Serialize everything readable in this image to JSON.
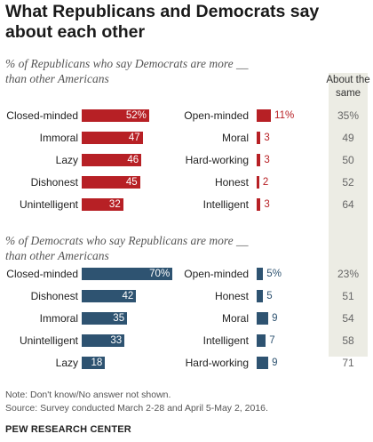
{
  "title": "What Republicans and Democrats say about each other",
  "same_header": "About the same",
  "notes": {
    "note": "Note: Don't know/No answer not shown.",
    "source": "Source: Survey conducted March 2-28 and April 5-May 2, 2016.",
    "brand": "PEW RESEARCH CENTER"
  },
  "colors": {
    "republican": "#b72025",
    "democrat": "#2e5371",
    "same_bg": "#ecece4"
  },
  "chart_data": [
    {
      "type": "bar",
      "subtitle": "% of Republicans who say Democrats are more __ than other Americans",
      "rows": [
        {
          "neg": "Closed-minded",
          "neg_value": 52,
          "neg_text": "52%",
          "pos": "Open-minded",
          "pos_value": 11,
          "pos_text": "11%",
          "same": "35%"
        },
        {
          "neg": "Immoral",
          "neg_value": 47,
          "neg_text": "47",
          "pos": "Moral",
          "pos_value": 3,
          "pos_text": "3",
          "same": "49"
        },
        {
          "neg": "Lazy",
          "neg_value": 46,
          "neg_text": "46",
          "pos": "Hard-working",
          "pos_value": 3,
          "pos_text": "3",
          "same": "50"
        },
        {
          "neg": "Dishonest",
          "neg_value": 45,
          "neg_text": "45",
          "pos": "Honest",
          "pos_value": 2,
          "pos_text": "2",
          "same": "52"
        },
        {
          "neg": "Unintelligent",
          "neg_value": 32,
          "neg_text": "32",
          "pos": "Intelligent",
          "pos_value": 3,
          "pos_text": "3",
          "same": "64"
        }
      ]
    },
    {
      "type": "bar",
      "subtitle": "% of Democrats who say Republicans are more __ than other Americans",
      "rows": [
        {
          "neg": "Closed-minded",
          "neg_value": 70,
          "neg_text": "70%",
          "pos": "Open-minded",
          "pos_value": 5,
          "pos_text": "5%",
          "same": "23%"
        },
        {
          "neg": "Dishonest",
          "neg_value": 42,
          "neg_text": "42",
          "pos": "Honest",
          "pos_value": 5,
          "pos_text": "5",
          "same": "51"
        },
        {
          "neg": "Immoral",
          "neg_value": 35,
          "neg_text": "35",
          "pos": "Moral",
          "pos_value": 9,
          "pos_text": "9",
          "same": "54"
        },
        {
          "neg": "Unintelligent",
          "neg_value": 33,
          "neg_text": "33",
          "pos": "Intelligent",
          "pos_value": 7,
          "pos_text": "7",
          "same": "58"
        },
        {
          "neg": "Lazy",
          "neg_value": 18,
          "neg_text": "18",
          "pos": "Hard-working",
          "pos_value": 9,
          "pos_text": "9",
          "same": "71"
        }
      ]
    }
  ]
}
